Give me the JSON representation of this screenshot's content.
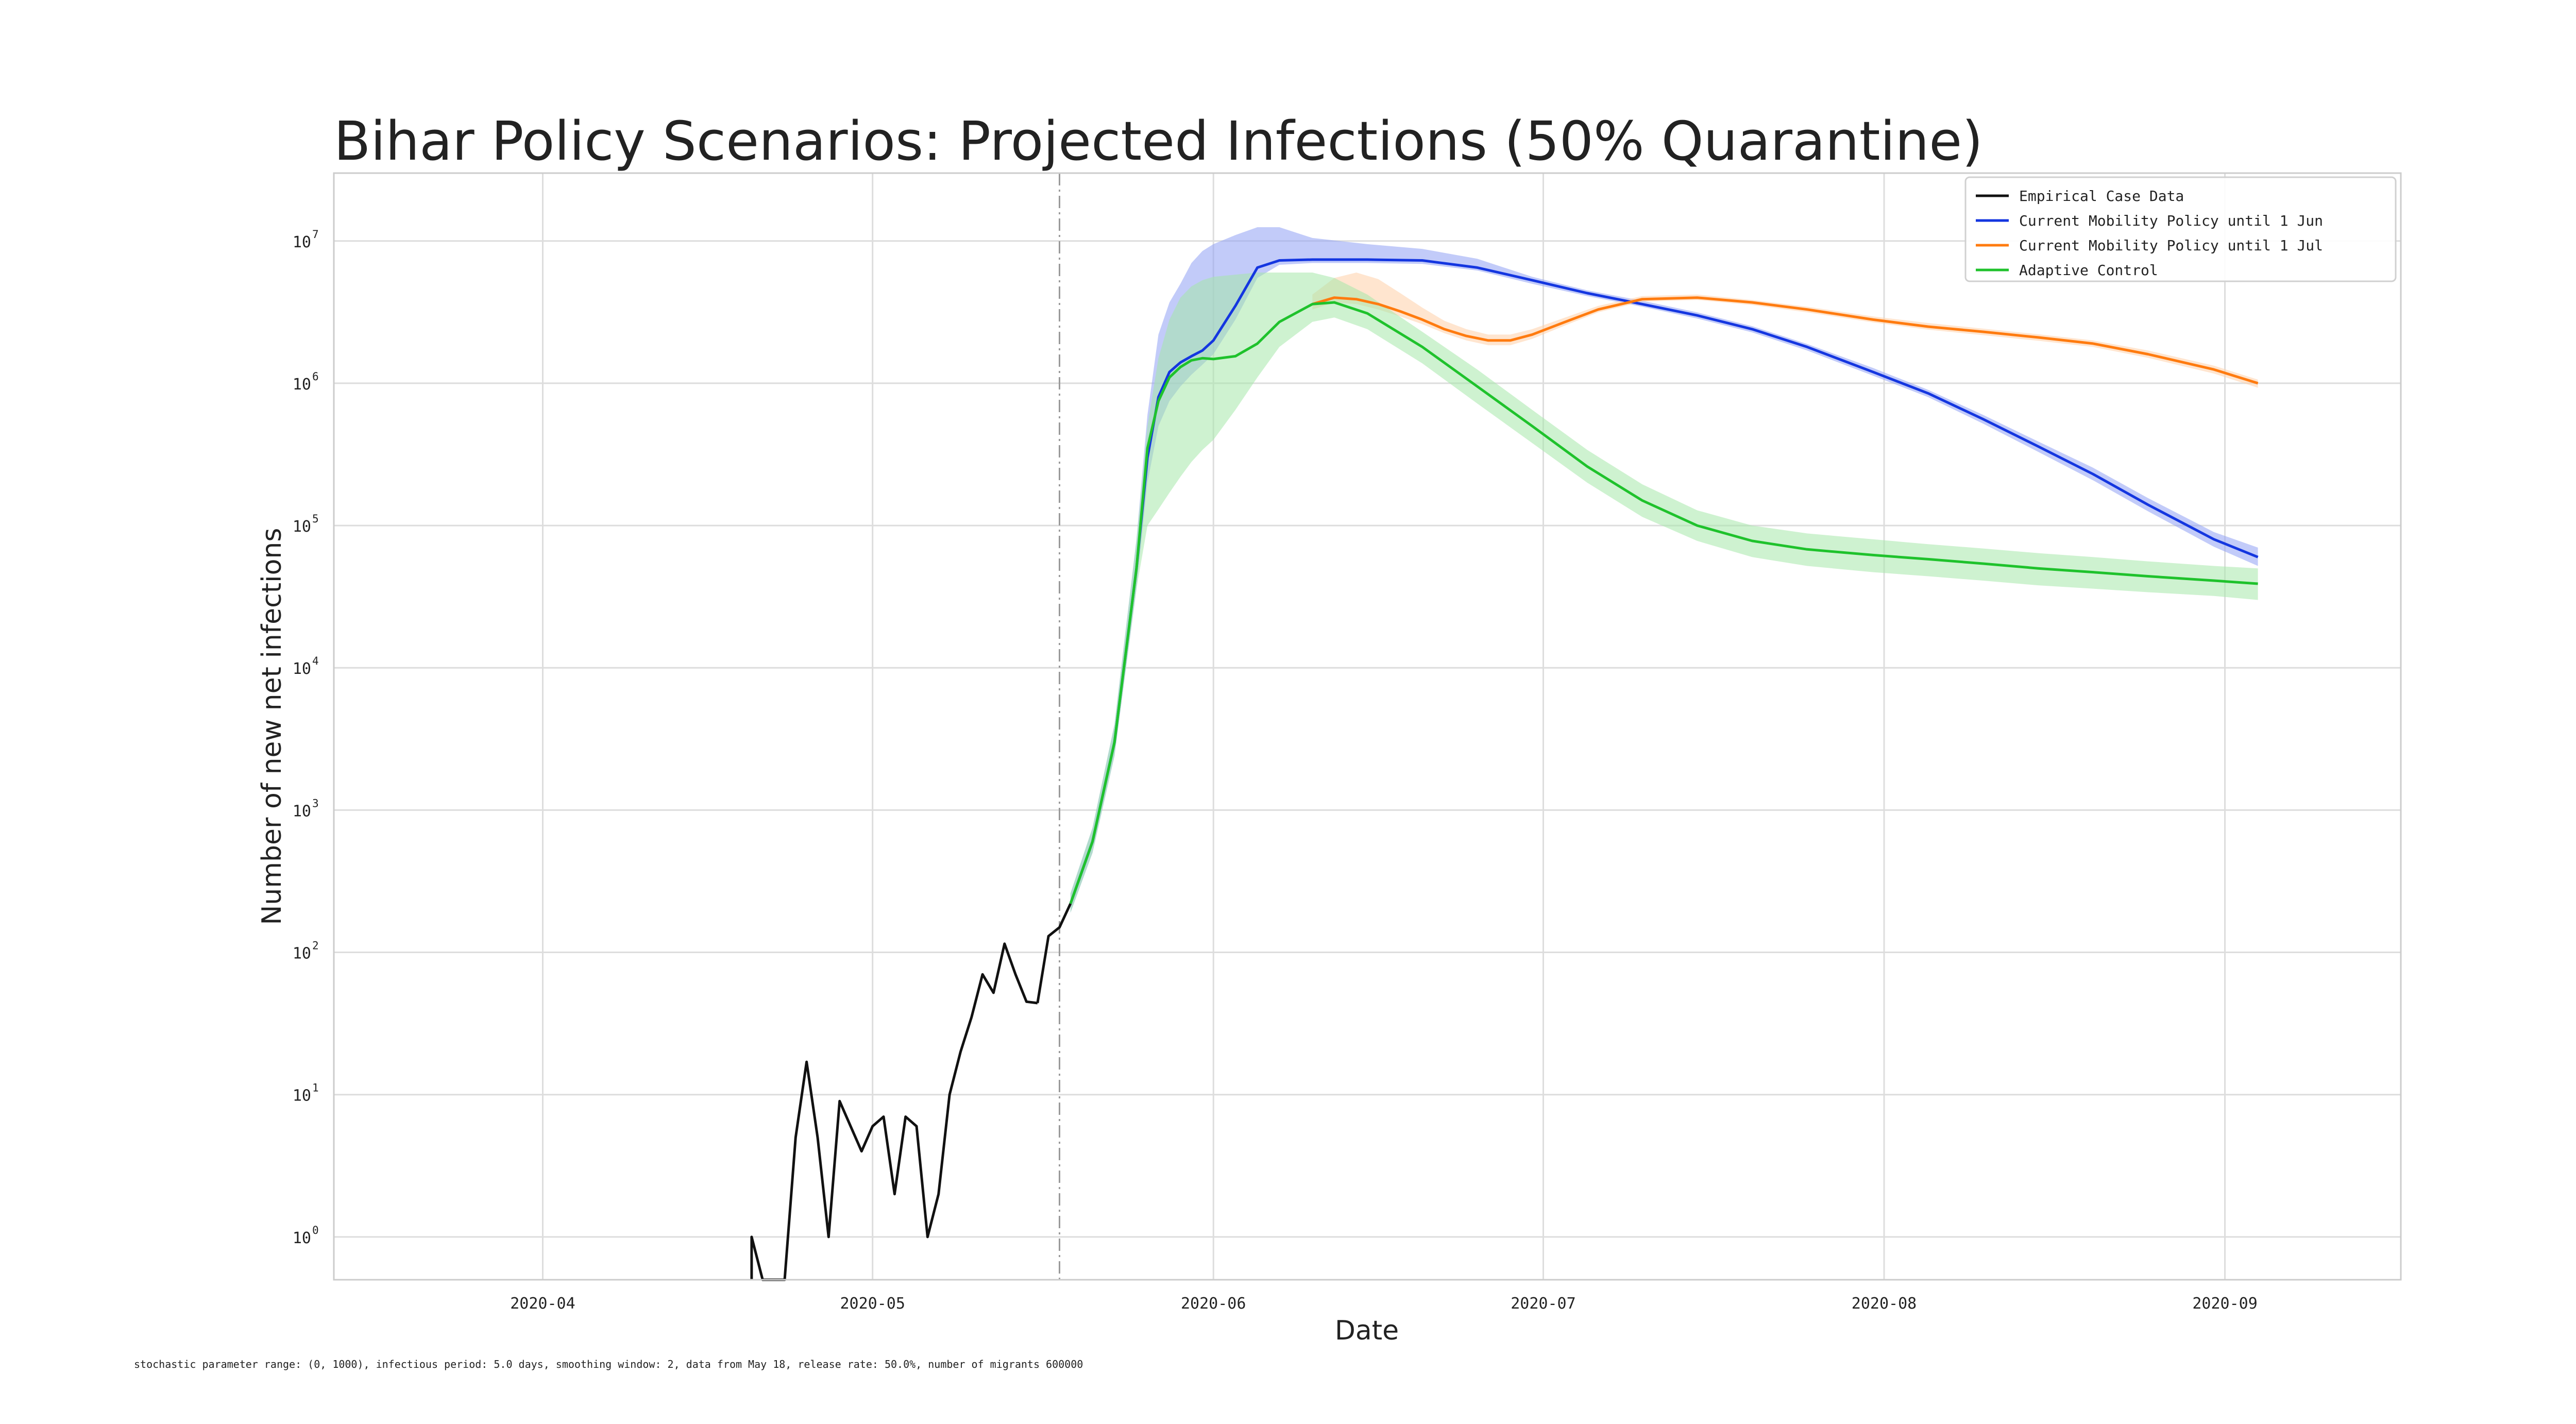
{
  "chart_data": {
    "type": "line",
    "title": "Bihar Policy Scenarios: Projected Infections (50% Quarantine)",
    "xlabel": "Date",
    "ylabel": "Number of new net infections",
    "yscale": "log",
    "ylim": [
      0.5,
      30000000
    ],
    "xlim": [
      "2020-03-13",
      "2020-09-17"
    ],
    "x_ticks": [
      "2020-04",
      "2020-05",
      "2020-06",
      "2020-07",
      "2020-08",
      "2020-09"
    ],
    "y_ticks": [
      {
        "base": "10",
        "exp": "0",
        "value": 1
      },
      {
        "base": "10",
        "exp": "1",
        "value": 10
      },
      {
        "base": "10",
        "exp": "2",
        "value": 100
      },
      {
        "base": "10",
        "exp": "3",
        "value": 1000
      },
      {
        "base": "10",
        "exp": "4",
        "value": 10000
      },
      {
        "base": "10",
        "exp": "5",
        "value": 100000
      },
      {
        "base": "10",
        "exp": "6",
        "value": 1000000
      },
      {
        "base": "10",
        "exp": "7",
        "value": 10000000
      }
    ],
    "grid": true,
    "legend_position": "top-right",
    "vline_date": "2020-05-18",
    "footnote": "stochastic parameter range: (0, 1000), infectious period: 5.0 days, smoothing window: 2, data from May 18, release rate: 50.0%, number of migrants 600000",
    "series": [
      {
        "name": "Empirical Case Data",
        "color": "#111111",
        "x": [
          "2020-04-20",
          "2020-04-20",
          "2020-04-21",
          "2020-04-22",
          "2020-04-23",
          "2020-04-24",
          "2020-04-25",
          "2020-04-26",
          "2020-04-27",
          "2020-04-28",
          "2020-04-29",
          "2020-04-30",
          "2020-05-01",
          "2020-05-02",
          "2020-05-03",
          "2020-05-04",
          "2020-05-05",
          "2020-05-06",
          "2020-05-07",
          "2020-05-08",
          "2020-05-09",
          "2020-05-10",
          "2020-05-11",
          "2020-05-12",
          "2020-05-13",
          "2020-05-14",
          "2020-05-15",
          "2020-05-16"
        ],
        "y": [
          0.5,
          1,
          0.5,
          0.5,
          0.5,
          5,
          17,
          5,
          1,
          9,
          6,
          4,
          6,
          7,
          2,
          7,
          6,
          1,
          2,
          10,
          20,
          35,
          70,
          52,
          115,
          70,
          45,
          44
        ],
        "x_tail": [
          "2020-05-16",
          "2020-05-17",
          "2020-05-18",
          "2020-05-19"
        ],
        "y_tail": [
          44,
          130,
          150,
          220
        ]
      },
      {
        "name": "Current Mobility Policy until 1 Jun",
        "color": "#1436e0",
        "band_color": "#8fa0f4",
        "x": [
          "2020-05-19",
          "2020-05-21",
          "2020-05-23",
          "2020-05-25",
          "2020-05-26",
          "2020-05-27",
          "2020-05-28",
          "2020-05-29",
          "2020-05-30",
          "2020-05-31",
          "2020-06-01",
          "2020-06-03",
          "2020-06-05",
          "2020-06-07",
          "2020-06-10",
          "2020-06-15",
          "2020-06-20",
          "2020-06-25",
          "2020-06-30",
          "2020-07-05",
          "2020-07-10",
          "2020-07-15",
          "2020-07-20",
          "2020-07-25",
          "2020-07-31",
          "2020-08-05",
          "2020-08-10",
          "2020-08-15",
          "2020-08-20",
          "2020-08-25",
          "2020-08-31",
          "2020-09-04"
        ],
        "y": [
          220,
          600,
          3000,
          50000,
          300000,
          800000,
          1200000,
          1400000,
          1550000,
          1700000,
          2000000,
          3500000,
          6500000,
          7300000,
          7400000,
          7400000,
          7300000,
          6500000,
          5300000,
          4300000,
          3600000,
          3000000,
          2400000,
          1800000,
          1200000,
          850000,
          560000,
          360000,
          230000,
          140000,
          80000,
          60000
        ],
        "upper": [
          260,
          750,
          4000,
          80000,
          600000,
          2200000,
          3700000,
          5000000,
          7000000,
          8500000,
          9500000,
          11000000,
          12500000,
          12500000,
          10500000,
          9500000,
          8800000,
          7500000,
          5600000,
          4500000,
          3800000,
          3150000,
          2520000,
          1890000,
          1280000,
          900000,
          600000,
          390000,
          255000,
          156000,
          90000,
          70000
        ],
        "lower": [
          190,
          500,
          2400,
          36000,
          200000,
          500000,
          750000,
          950000,
          1150000,
          1350000,
          1600000,
          2800000,
          5500000,
          6800000,
          7000000,
          7000000,
          6900000,
          6200000,
          5000000,
          4100000,
          3450000,
          2850000,
          2280000,
          1700000,
          1130000,
          800000,
          520000,
          330000,
          208000,
          126000,
          71000,
          52000
        ]
      },
      {
        "name": "Current Mobility Policy until 1 Jul",
        "color": "#ff7b0f",
        "band_color": "#ffd0a8",
        "x": [
          "2020-06-10",
          "2020-06-12",
          "2020-06-14",
          "2020-06-16",
          "2020-06-18",
          "2020-06-20",
          "2020-06-22",
          "2020-06-24",
          "2020-06-26",
          "2020-06-28",
          "2020-06-30",
          "2020-07-03",
          "2020-07-06",
          "2020-07-10",
          "2020-07-15",
          "2020-07-20",
          "2020-07-25",
          "2020-07-31",
          "2020-08-05",
          "2020-08-10",
          "2020-08-15",
          "2020-08-20",
          "2020-08-25",
          "2020-08-31",
          "2020-09-04"
        ],
        "y": [
          3600000,
          4000000,
          3900000,
          3600000,
          3200000,
          2800000,
          2400000,
          2150000,
          2000000,
          2000000,
          2200000,
          2700000,
          3300000,
          3900000,
          4000000,
          3700000,
          3300000,
          2800000,
          2500000,
          2300000,
          2100000,
          1900000,
          1600000,
          1250000,
          1000000
        ],
        "upper": [
          4200000,
          5500000,
          6000000,
          5400000,
          4300000,
          3400000,
          2750000,
          2400000,
          2200000,
          2200000,
          2400000,
          2900000,
          3500000,
          4100000,
          4200000,
          3850000,
          3450000,
          2950000,
          2650000,
          2420000,
          2210000,
          2000000,
          1700000,
          1330000,
          1060000
        ],
        "lower": [
          3300000,
          3700000,
          3600000,
          3300000,
          2950000,
          2600000,
          2250000,
          2000000,
          1850000,
          1850000,
          2050000,
          2550000,
          3150000,
          3750000,
          3850000,
          3550000,
          3150000,
          2680000,
          2380000,
          2180000,
          1990000,
          1800000,
          1510000,
          1170000,
          930000
        ]
      },
      {
        "name": "Adaptive Control",
        "color": "#1fc22c",
        "band_color": "#a6e8aa",
        "x": [
          "2020-05-19",
          "2020-05-21",
          "2020-05-23",
          "2020-05-25",
          "2020-05-26",
          "2020-05-27",
          "2020-05-28",
          "2020-05-29",
          "2020-05-30",
          "2020-05-31",
          "2020-06-01",
          "2020-06-03",
          "2020-06-05",
          "2020-06-07",
          "2020-06-10",
          "2020-06-12",
          "2020-06-15",
          "2020-06-20",
          "2020-06-25",
          "2020-06-30",
          "2020-07-05",
          "2020-07-10",
          "2020-07-15",
          "2020-07-20",
          "2020-07-25",
          "2020-07-31",
          "2020-08-05",
          "2020-08-10",
          "2020-08-15",
          "2020-08-20",
          "2020-08-25",
          "2020-08-31",
          "2020-09-04"
        ],
        "y": [
          220,
          600,
          3000,
          50000,
          350000,
          750000,
          1100000,
          1300000,
          1450000,
          1500000,
          1480000,
          1550000,
          1900000,
          2700000,
          3600000,
          3700000,
          3100000,
          1800000,
          950000,
          500000,
          260000,
          150000,
          100000,
          78000,
          68000,
          62000,
          58000,
          54000,
          50000,
          47000,
          44000,
          41000,
          39000
        ],
        "upper": [
          260,
          750,
          4000,
          80000,
          500000,
          1500000,
          2800000,
          4000000,
          4800000,
          5300000,
          5600000,
          5800000,
          6000000,
          6000000,
          6000000,
          5500000,
          4200000,
          2300000,
          1250000,
          650000,
          340000,
          195000,
          128000,
          100000,
          88000,
          80000,
          74000,
          69000,
          64000,
          60000,
          56000,
          52000,
          50000
        ],
        "lower": [
          190,
          500,
          2400,
          36000,
          100000,
          130000,
          170000,
          220000,
          280000,
          340000,
          400000,
          650000,
          1100000,
          1800000,
          2700000,
          2900000,
          2400000,
          1380000,
          720000,
          380000,
          200000,
          115000,
          78000,
          60000,
          52000,
          47000,
          44000,
          41000,
          38000,
          36000,
          34000,
          32000,
          30000
        ]
      }
    ]
  }
}
